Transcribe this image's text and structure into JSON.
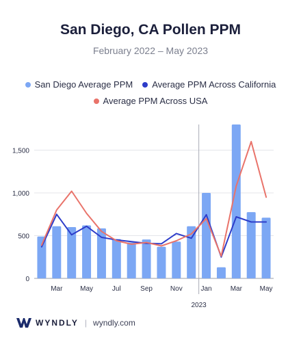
{
  "header": {
    "title": "San Diego, CA Pollen PPM",
    "subtitle": "February 2022 – May 2023"
  },
  "legend": [
    {
      "label": "San Diego Average PPM",
      "color": "#7ca7f4"
    },
    {
      "label": "Average PPM Across California",
      "color": "#2d3cc9"
    },
    {
      "label": "Average PPM Across USA",
      "color": "#e9736a"
    }
  ],
  "chart_data": {
    "type": "bar",
    "categories": [
      "Feb 2022",
      "Mar 2022",
      "Apr 2022",
      "May 2022",
      "Jun 2022",
      "Jul 2022",
      "Aug 2022",
      "Sep 2022",
      "Oct 2022",
      "Nov 2022",
      "Dec 2022",
      "Jan 2023",
      "Feb 2023",
      "Mar 2023",
      "Apr 2023",
      "May 2023"
    ],
    "x_tick_labels": [
      "",
      "Mar",
      "",
      "May",
      "",
      "Jul",
      "",
      "Sep",
      "",
      "Nov",
      "",
      "Jan",
      "",
      "Mar",
      "",
      "May"
    ],
    "year_marker": {
      "label": "2023",
      "between_index": 10.5
    },
    "series": [
      {
        "name": "San Diego Average PPM",
        "kind": "bar",
        "color": "#7ca7f4",
        "values": [
          490,
          610,
          600,
          620,
          585,
          460,
          420,
          455,
          370,
          430,
          610,
          1000,
          130,
          1800,
          775,
          710
        ]
      },
      {
        "name": "Average PPM Across California",
        "kind": "line",
        "color": "#2d3cc9",
        "values": [
          370,
          750,
          510,
          610,
          480,
          450,
          430,
          410,
          405,
          525,
          470,
          745,
          250,
          720,
          660,
          660
        ]
      },
      {
        "name": "Average PPM Across USA",
        "kind": "line",
        "color": "#e9736a",
        "values": [
          390,
          800,
          1020,
          760,
          550,
          440,
          400,
          420,
          380,
          440,
          520,
          700,
          260,
          1080,
          1600,
          950
        ]
      }
    ],
    "y_ticks": [
      0,
      500,
      1000,
      1500
    ],
    "y_tick_labels": [
      "0",
      "500",
      "1,000",
      "1,500"
    ],
    "ylim": [
      0,
      1800
    ],
    "grid": true,
    "legend_position": "top"
  },
  "footer": {
    "brand": "WYNDLY",
    "site": "wyndly.com"
  }
}
